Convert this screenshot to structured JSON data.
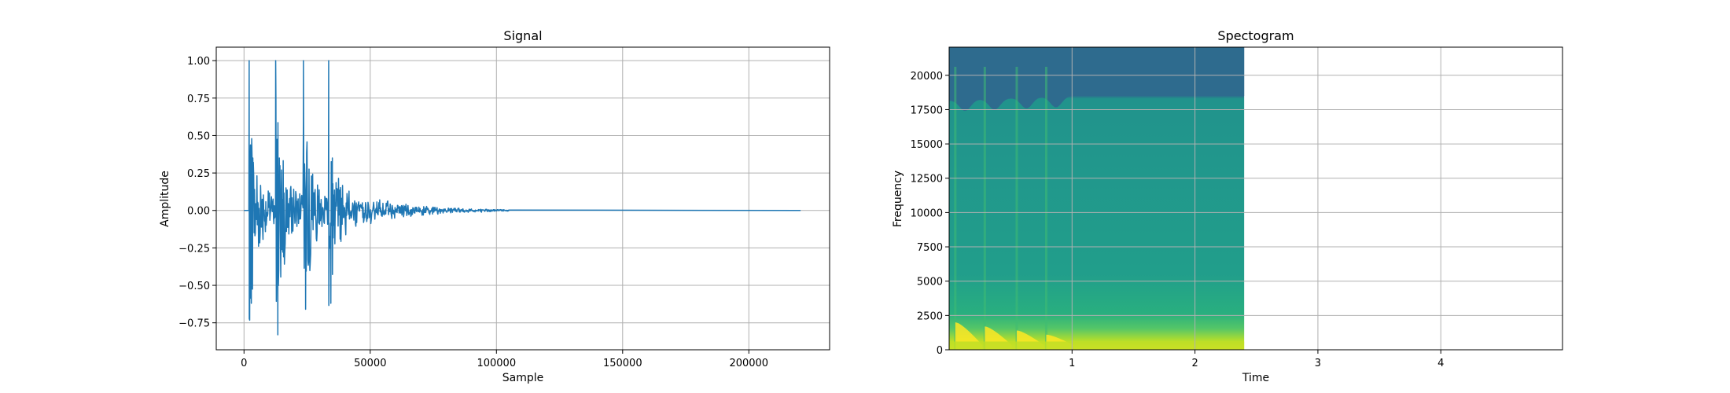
{
  "colors": {
    "signal_line": "#1f77b4",
    "grid": "#b0b0b0",
    "spectrogram_high_band": "#2e6b8e",
    "spectrogram_body": "#21908d",
    "spectrogram_low_band": "#fde725"
  },
  "chart_data": [
    {
      "type": "line",
      "title": "Signal",
      "xlabel": "Sample",
      "ylabel": "Amplitude",
      "xlim": [
        -11000,
        232000
      ],
      "ylim": [
        -0.93,
        1.09
      ],
      "xticks": [
        0,
        50000,
        100000,
        150000,
        200000
      ],
      "xtick_labels": [
        "0",
        "50000",
        "100000",
        "150000",
        "200000"
      ],
      "yticks": [
        -0.75,
        -0.5,
        -0.25,
        0.0,
        0.25,
        0.5,
        0.75,
        1.0
      ],
      "ytick_labels": [
        "−0.75",
        "−0.50",
        "−0.25",
        "0.00",
        "0.25",
        "0.50",
        "0.75",
        "1.00"
      ],
      "grid": true,
      "series": [
        {
          "bursts": [
            {
              "onset": 2000,
              "peak": 1.0,
              "trough": -0.62,
              "decay": 0.72
            },
            {
              "onset": 12500,
              "peak": 1.0,
              "trough": -0.83,
              "decay": 0.78
            },
            {
              "onset": 23500,
              "peak": 1.0,
              "trough": -0.66,
              "decay": 0.66
            },
            {
              "onset": 33500,
              "peak": 1.0,
              "trough": -0.62,
              "decay": 0.55
            }
          ],
          "active_until": 105000,
          "length": 220500
        }
      ]
    },
    {
      "type": "heatmap",
      "title": "Spectogram",
      "xlabel": "Time",
      "ylabel": "Frequency",
      "xlim": [
        0,
        4.99
      ],
      "ylim": [
        0,
        22050
      ],
      "xticks": [
        1,
        2,
        3,
        4
      ],
      "xtick_labels": [
        "1",
        "2",
        "3",
        "4"
      ],
      "yticks": [
        0,
        2500,
        5000,
        7500,
        10000,
        12500,
        15000,
        17500,
        20000
      ],
      "ytick_labels": [
        "0",
        "2500",
        "5000",
        "7500",
        "10000",
        "12500",
        "15000",
        "17500",
        "20000"
      ],
      "grid": true,
      "data_extent_time": [
        0,
        2.4
      ],
      "high_band_floor_hz": 18500,
      "onset_times": [
        0.05,
        0.29,
        0.55,
        0.79
      ],
      "strong_energy_max_hz": 2000
    }
  ]
}
